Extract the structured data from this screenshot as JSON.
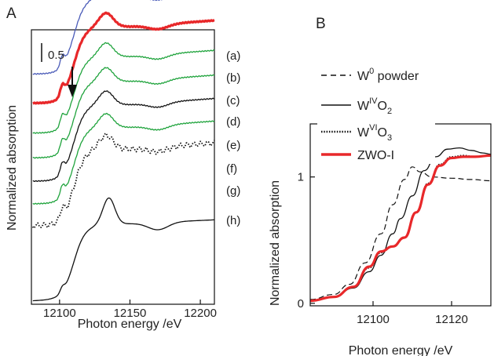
{
  "colors": {
    "blue": "#4a5bb8",
    "red": "#e8282a",
    "green": "#1fa33c",
    "black": "#111111"
  },
  "chart_data": [
    {
      "panel": "A",
      "type": "line",
      "ylabel": "Normalized absorption",
      "xlabel": "Photon energy /eV",
      "xlim": [
        12080,
        12210
      ],
      "xticks": [
        "12100",
        "12150",
        "12200"
      ],
      "scalebar_label": "0.5",
      "arrow_energy": 12104,
      "series": [
        {
          "name": "(a)",
          "color": "blue",
          "style": "solid",
          "width": 1.3,
          "offset": 3.05
        },
        {
          "name": "(b)",
          "color": "red",
          "style": "solid",
          "width": 3.2,
          "offset": 2.65
        },
        {
          "name": "(c)",
          "color": "green",
          "style": "solid",
          "width": 1.3,
          "offset": 2.24
        },
        {
          "name": "(d)",
          "color": "green",
          "style": "solid",
          "width": 1.3,
          "offset": 1.9
        },
        {
          "name": "(e)",
          "color": "black",
          "style": "solid",
          "width": 1.3,
          "offset": 1.58
        },
        {
          "name": "(f)",
          "color": "green",
          "style": "solid",
          "width": 1.3,
          "offset": 1.27
        },
        {
          "name": "(g)",
          "color": "black",
          "style": "dotted",
          "width": 1.8,
          "offset": 0.97
        },
        {
          "name": "(h)",
          "color": "black",
          "style": "solid",
          "width": 1.3,
          "offset": 0.0
        }
      ]
    },
    {
      "panel": "B",
      "type": "line",
      "ylabel": "Normalized absorption",
      "xlabel": "Photon energy /eV",
      "xlim": [
        12084,
        12130
      ],
      "ylim": [
        -0.02,
        1.42
      ],
      "xticks": [
        "12100",
        "12120"
      ],
      "yticks": [
        "0",
        "1"
      ],
      "legend": [
        {
          "base": "W",
          "sup": "0",
          "sub": "",
          "tail": " powder",
          "style": "dashed",
          "color": "black"
        },
        {
          "base": "W",
          "sup": "IV",
          "sub": "2",
          "tail": "",
          "mid": "O",
          "style": "solid",
          "color": "black"
        },
        {
          "base": "W",
          "sup": "VI",
          "sub": "3",
          "tail": "",
          "mid": "O",
          "style": "dotted",
          "color": "black"
        },
        {
          "base": "ZWO-I",
          "sup": "",
          "sub": "",
          "tail": "",
          "style": "solid",
          "color": "red"
        }
      ],
      "series": [
        {
          "name": "W0 powder",
          "style": "dashed",
          "color": "black",
          "width": 1.2,
          "points": [
            [
              12084,
              0.03
            ],
            [
              12090,
              0.07
            ],
            [
              12094,
              0.15
            ],
            [
              12098,
              0.32
            ],
            [
              12102,
              0.55
            ],
            [
              12105,
              0.78
            ],
            [
              12108,
              0.98
            ],
            [
              12110,
              1.08
            ],
            [
              12112,
              1.04
            ],
            [
              12115,
              1.0
            ],
            [
              12120,
              0.99
            ],
            [
              12125,
              0.98
            ],
            [
              12130,
              0.97
            ]
          ]
        },
        {
          "name": "WIVO2",
          "style": "solid",
          "color": "black",
          "width": 1.3,
          "points": [
            [
              12084,
              0.02
            ],
            [
              12090,
              0.05
            ],
            [
              12095,
              0.12
            ],
            [
              12099,
              0.25
            ],
            [
              12102,
              0.38
            ],
            [
              12105,
              0.55
            ],
            [
              12107,
              0.67
            ],
            [
              12110,
              0.85
            ],
            [
              12113,
              1.05
            ],
            [
              12116,
              1.16
            ],
            [
              12119,
              1.22
            ],
            [
              12122,
              1.23
            ],
            [
              12125,
              1.21
            ],
            [
              12128,
              1.19
            ],
            [
              12130,
              1.18
            ]
          ]
        },
        {
          "name": "WVIO3",
          "style": "dotted",
          "color": "black",
          "width": 1.8,
          "points": [
            [
              12084,
              0.02
            ],
            [
              12090,
              0.05
            ],
            [
              12095,
              0.13
            ],
            [
              12099,
              0.28
            ],
            [
              12102,
              0.4
            ],
            [
              12105,
              0.45
            ],
            [
              12108,
              0.52
            ],
            [
              12111,
              0.72
            ],
            [
              12114,
              0.95
            ],
            [
              12117,
              1.1
            ],
            [
              12120,
              1.16
            ],
            [
              12123,
              1.17
            ],
            [
              12126,
              1.16
            ],
            [
              12130,
              1.17
            ]
          ]
        },
        {
          "name": "ZWO-I",
          "style": "solid",
          "color": "red",
          "width": 3.2,
          "points": [
            [
              12084,
              0.02
            ],
            [
              12090,
              0.05
            ],
            [
              12095,
              0.13
            ],
            [
              12099,
              0.29
            ],
            [
              12102,
              0.41
            ],
            [
              12105,
              0.45
            ],
            [
              12108,
              0.52
            ],
            [
              12111,
              0.72
            ],
            [
              12114,
              0.94
            ],
            [
              12117,
              1.09
            ],
            [
              12120,
              1.15
            ],
            [
              12123,
              1.16
            ],
            [
              12126,
              1.16
            ],
            [
              12130,
              1.17
            ]
          ]
        }
      ]
    }
  ]
}
